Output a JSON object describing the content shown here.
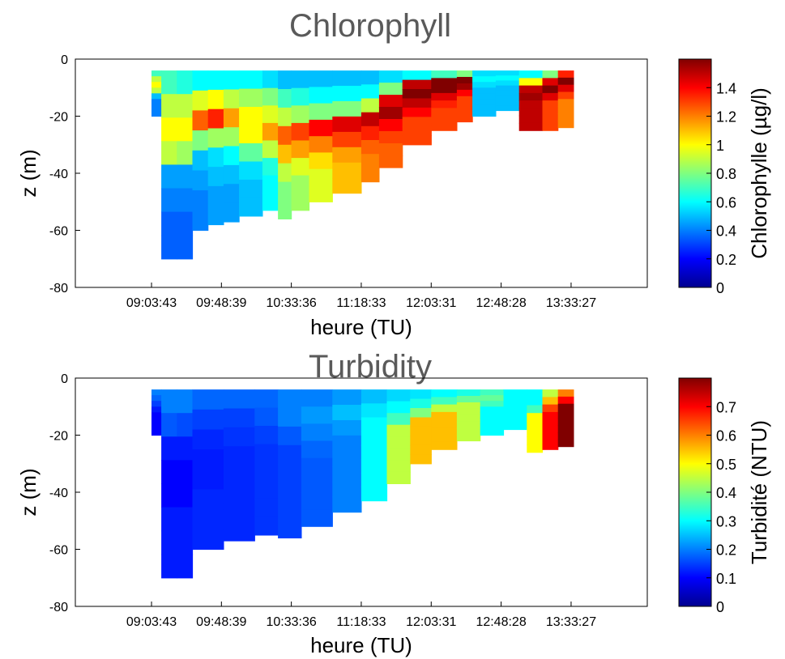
{
  "chart_data": [
    {
      "type": "heatmap",
      "title": "Chlorophyll",
      "xlabel": "heure (TU)",
      "ylabel": "z (m)",
      "x_ticks": [
        "09:03:43",
        "09:48:39",
        "10:33:36",
        "11:18:33",
        "12:03:31",
        "12:48:28",
        "13:33:27"
      ],
      "y_ticks": [
        0,
        -20,
        -40,
        -60,
        -80
      ],
      "ylim": [
        -80,
        0
      ],
      "colorbar": {
        "label": "Chlorophylle (µg/l)",
        "ticks": [
          0,
          0.2,
          0.4,
          0.6,
          0.8,
          1,
          1.2,
          1.4
        ],
        "tick_labels": [
          "0",
          "0.2",
          "0.4",
          "0.6",
          "0.8",
          "1",
          "1.2",
          "1.4"
        ],
        "range": [
          0,
          1.6
        ],
        "colormap": "jet"
      },
      "profiles": [
        {
          "time": "09:03:43",
          "bottom": -20,
          "values": [
            0.7,
            0.9,
            1.0,
            0.9,
            0.5,
            0.4,
            0.4,
            0.4
          ]
        },
        {
          "time": "09:10:00",
          "bottom": -70,
          "values": [
            0.7,
            0.9,
            1.0,
            0.9,
            0.45,
            0.4,
            0.35,
            0.35
          ]
        },
        {
          "time": "09:20:00",
          "bottom": -70,
          "values": [
            0.65,
            0.9,
            1.0,
            0.85,
            0.45,
            0.4,
            0.35,
            0.35
          ]
        },
        {
          "time": "09:30:00",
          "bottom": -60,
          "values": [
            0.6,
            0.95,
            1.25,
            0.8,
            0.5,
            0.45,
            0.4,
            0.4
          ]
        },
        {
          "time": "09:40:00",
          "bottom": -58,
          "values": [
            0.6,
            1.0,
            1.35,
            0.85,
            0.55,
            0.5,
            0.45,
            0.45
          ]
        },
        {
          "time": "09:50:00",
          "bottom": -57,
          "values": [
            0.6,
            0.9,
            1.15,
            0.85,
            0.6,
            0.5,
            0.45,
            0.45
          ]
        },
        {
          "time": "10:00:00",
          "bottom": -55,
          "values": [
            0.6,
            0.85,
            1.0,
            1.0,
            0.75,
            0.55,
            0.5,
            0.5
          ]
        },
        {
          "time": "10:15:00",
          "bottom": -53,
          "values": [
            0.55,
            0.8,
            0.95,
            1.15,
            0.9,
            0.65,
            0.6,
            0.6
          ]
        },
        {
          "time": "10:25:00",
          "bottom": -56,
          "values": [
            0.5,
            0.7,
            0.9,
            1.25,
            1.1,
            0.9,
            0.8,
            0.8
          ]
        },
        {
          "time": "10:33:36",
          "bottom": -53,
          "values": [
            0.5,
            0.65,
            0.85,
            1.3,
            1.15,
            0.95,
            0.85,
            0.85
          ]
        },
        {
          "time": "10:45:00",
          "bottom": -50,
          "values": [
            0.5,
            0.6,
            0.8,
            1.4,
            1.2,
            1.05,
            0.95,
            0.95
          ]
        },
        {
          "time": "11:00:00",
          "bottom": -47,
          "values": [
            0.5,
            0.6,
            0.8,
            1.45,
            1.3,
            1.15,
            1.1,
            1.1
          ]
        },
        {
          "time": "11:18:33",
          "bottom": -43,
          "values": [
            0.5,
            0.6,
            0.9,
            1.5,
            1.35,
            1.25,
            1.2,
            1.2
          ]
        },
        {
          "time": "11:30:00",
          "bottom": -38,
          "values": [
            0.55,
            0.8,
            1.45,
            1.55,
            1.4,
            1.3,
            1.25,
            1.25
          ]
        },
        {
          "time": "11:45:00",
          "bottom": -30,
          "values": [
            0.6,
            1.5,
            1.6,
            1.5,
            1.4,
            1.3,
            1.3,
            1.3
          ]
        },
        {
          "time": "12:03:31",
          "bottom": -25,
          "values": [
            0.7,
            1.6,
            1.6,
            1.45,
            1.35,
            1.3,
            1.3,
            1.3
          ]
        },
        {
          "time": "12:20:00",
          "bottom": -22,
          "values": [
            0.8,
            1.6,
            1.55,
            1.4,
            1.3,
            1.3,
            1.3,
            1.3
          ]
        },
        {
          "time": "12:30:00",
          "bottom": -20,
          "values": [
            0.55,
            0.6,
            0.55,
            0.5,
            0.5,
            0.5,
            0.5,
            0.5
          ]
        },
        {
          "time": "12:45:00",
          "bottom": -18,
          "values": [
            0.55,
            0.6,
            0.55,
            0.5,
            0.5,
            0.5,
            0.5,
            0.5
          ]
        },
        {
          "time": "13:00:00",
          "bottom": -25,
          "values": [
            0.6,
            1.0,
            1.5,
            1.55,
            1.5,
            1.5,
            1.5,
            1.5
          ]
        },
        {
          "time": "13:15:00",
          "bottom": -25,
          "values": [
            0.8,
            1.45,
            1.6,
            1.45,
            1.3,
            1.3,
            1.3,
            1.3
          ]
        },
        {
          "time": "13:25:00",
          "bottom": -24,
          "values": [
            1.35,
            1.6,
            1.45,
            1.3,
            1.2,
            1.2,
            1.2,
            1.2
          ]
        }
      ]
    },
    {
      "type": "heatmap",
      "title": "Turbidity",
      "xlabel": "heure (TU)",
      "ylabel": "z (m)",
      "x_ticks": [
        "09:03:43",
        "09:48:39",
        "10:33:36",
        "11:18:33",
        "12:03:31",
        "12:48:28",
        "13:33:27"
      ],
      "y_ticks": [
        0,
        -20,
        -40,
        -60,
        -80
      ],
      "ylim": [
        -80,
        0
      ],
      "colorbar": {
        "label": "Turbidité (NTU)",
        "ticks": [
          0,
          0.1,
          0.2,
          0.3,
          0.4,
          0.5,
          0.6,
          0.7
        ],
        "tick_labels": [
          "0",
          "0.1",
          "0.2",
          "0.3",
          "0.4",
          "0.5",
          "0.6",
          "0.7"
        ],
        "range": [
          0,
          0.8
        ],
        "colormap": "jet"
      },
      "profiles": [
        {
          "time": "09:03:43",
          "bottom": -20,
          "values": [
            0.2,
            0.18,
            0.15,
            0.12,
            0.1,
            0.1,
            0.1,
            0.1
          ]
        },
        {
          "time": "09:10:00",
          "bottom": -70,
          "values": [
            0.2,
            0.17,
            0.12,
            0.1,
            0.1,
            0.12,
            0.12,
            0.12
          ]
        },
        {
          "time": "09:20:00",
          "bottom": -70,
          "values": [
            0.2,
            0.16,
            0.12,
            0.1,
            0.1,
            0.12,
            0.12,
            0.12
          ]
        },
        {
          "time": "09:30:00",
          "bottom": -60,
          "values": [
            0.18,
            0.15,
            0.13,
            0.12,
            0.12,
            0.13,
            0.13,
            0.13
          ]
        },
        {
          "time": "09:50:00",
          "bottom": -57,
          "values": [
            0.18,
            0.15,
            0.14,
            0.13,
            0.13,
            0.13,
            0.13,
            0.13
          ]
        },
        {
          "time": "10:10:00",
          "bottom": -55,
          "values": [
            0.18,
            0.17,
            0.15,
            0.14,
            0.14,
            0.14,
            0.14,
            0.14
          ]
        },
        {
          "time": "10:25:00",
          "bottom": -56,
          "values": [
            0.2,
            0.2,
            0.17,
            0.15,
            0.15,
            0.15,
            0.15,
            0.15
          ]
        },
        {
          "time": "10:40:00",
          "bottom": -52,
          "values": [
            0.2,
            0.22,
            0.2,
            0.18,
            0.17,
            0.17,
            0.17,
            0.17
          ]
        },
        {
          "time": "11:00:00",
          "bottom": -47,
          "values": [
            0.22,
            0.25,
            0.22,
            0.2,
            0.2,
            0.2,
            0.2,
            0.2
          ]
        },
        {
          "time": "11:18:33",
          "bottom": -43,
          "values": [
            0.25,
            0.28,
            0.3,
            0.3,
            0.3,
            0.3,
            0.3,
            0.3
          ]
        },
        {
          "time": "11:35:00",
          "bottom": -37,
          "values": [
            0.27,
            0.3,
            0.35,
            0.45,
            0.45,
            0.45,
            0.45,
            0.45
          ]
        },
        {
          "time": "11:50:00",
          "bottom": -30,
          "values": [
            0.28,
            0.32,
            0.4,
            0.55,
            0.55,
            0.55,
            0.55,
            0.55
          ]
        },
        {
          "time": "12:03:31",
          "bottom": -25,
          "values": [
            0.3,
            0.35,
            0.45,
            0.55,
            0.55,
            0.55,
            0.55,
            0.55
          ]
        },
        {
          "time": "12:20:00",
          "bottom": -22,
          "values": [
            0.32,
            0.38,
            0.45,
            0.45,
            0.45,
            0.45,
            0.45,
            0.45
          ]
        },
        {
          "time": "12:35:00",
          "bottom": -20,
          "values": [
            0.35,
            0.38,
            0.35,
            0.3,
            0.3,
            0.3,
            0.3,
            0.3
          ]
        },
        {
          "time": "12:50:00",
          "bottom": -18,
          "values": [
            0.3,
            0.3,
            0.3,
            0.3,
            0.3,
            0.3,
            0.3,
            0.3
          ]
        },
        {
          "time": "13:05:00",
          "bottom": -26,
          "values": [
            0.3,
            0.3,
            0.35,
            0.5,
            0.5,
            0.5,
            0.5,
            0.5
          ]
        },
        {
          "time": "13:15:00",
          "bottom": -25,
          "values": [
            0.45,
            0.55,
            0.65,
            0.7,
            0.7,
            0.7,
            0.7,
            0.7
          ]
        },
        {
          "time": "13:25:00",
          "bottom": -24,
          "values": [
            0.6,
            0.7,
            0.8,
            0.8,
            0.8,
            0.8,
            0.8,
            0.8
          ]
        }
      ]
    }
  ]
}
